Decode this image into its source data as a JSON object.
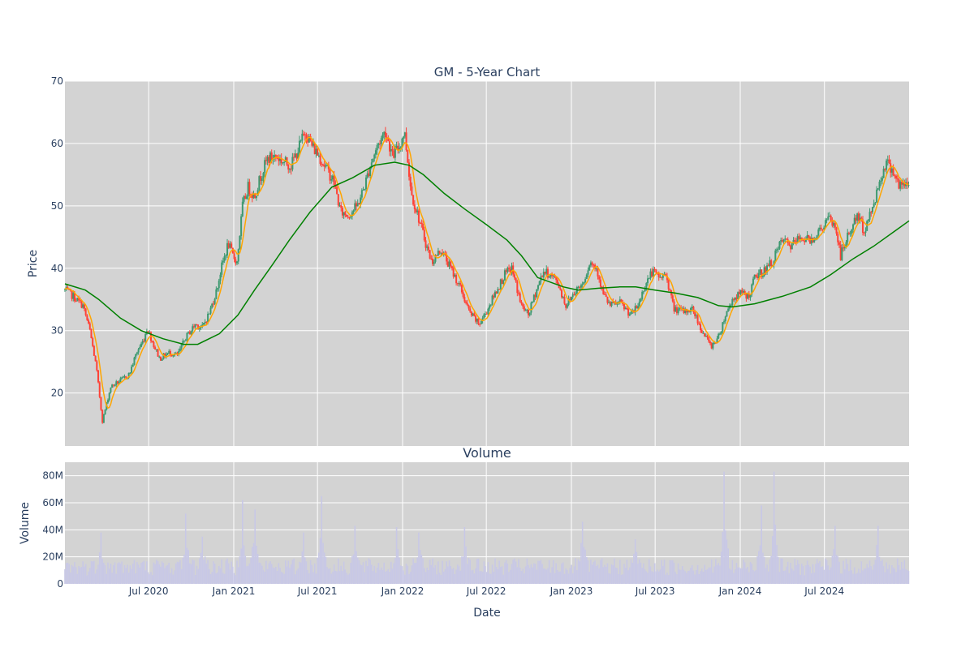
{
  "chart_data": [
    {
      "type": "candlestick",
      "title": "GM - 5-Year Chart",
      "ylabel": "Price",
      "ylim": [
        11.5,
        70
      ],
      "yticks": [
        20,
        30,
        40,
        50,
        60,
        70
      ],
      "grid": true,
      "colors": {
        "up": "#3d9970",
        "down": "#ff4136",
        "ma_short": "#ffa500",
        "ma_long": "#008000",
        "background": "#d3d3d3",
        "grid": "#ffffff"
      },
      "series": [
        {
          "kind": "ohlc",
          "x_start": "2020-01-02",
          "x_end": "2024-12-31"
        },
        {
          "kind": "ma_short"
        },
        {
          "kind": "ma_long"
        }
      ],
      "close_path": [
        [
          "2020-01-02",
          36.5
        ],
        [
          "2020-01-20",
          35.5
        ],
        [
          "2020-02-10",
          34.0
        ],
        [
          "2020-02-25",
          30.0
        ],
        [
          "2020-03-10",
          24.0
        ],
        [
          "2020-03-23",
          15.5
        ],
        [
          "2020-04-10",
          21.0
        ],
        [
          "2020-05-01",
          22.0
        ],
        [
          "2020-05-20",
          23.0
        ],
        [
          "2020-06-05",
          26.5
        ],
        [
          "2020-06-20",
          28.5
        ],
        [
          "2020-06-28",
          30.5
        ],
        [
          "2020-07-10",
          28.0
        ],
        [
          "2020-07-25",
          25.5
        ],
        [
          "2020-08-15",
          26.5
        ],
        [
          "2020-09-01",
          26.0
        ],
        [
          "2020-09-20",
          29.0
        ],
        [
          "2020-10-10",
          31.0
        ],
        [
          "2020-10-25",
          30.5
        ],
        [
          "2020-11-10",
          33.0
        ],
        [
          "2020-11-25",
          36.5
        ],
        [
          "2020-12-05",
          40.0
        ],
        [
          "2020-12-20",
          44.0
        ],
        [
          "2020-12-30",
          42.0
        ],
        [
          "2021-01-08",
          41.0
        ],
        [
          "2021-01-20",
          50.0
        ],
        [
          "2021-02-01",
          53.0
        ],
        [
          "2021-02-15",
          51.5
        ],
        [
          "2021-03-01",
          55.0
        ],
        [
          "2021-03-15",
          57.5
        ],
        [
          "2021-04-01",
          58.0
        ],
        [
          "2021-04-20",
          57.0
        ],
        [
          "2021-05-05",
          56.5
        ],
        [
          "2021-05-20",
          59.0
        ],
        [
          "2021-06-05",
          62.0
        ],
        [
          "2021-06-20",
          59.5
        ],
        [
          "2021-07-05",
          58.0
        ],
        [
          "2021-07-20",
          56.0
        ],
        [
          "2021-08-05",
          54.0
        ],
        [
          "2021-08-20",
          49.0
        ],
        [
          "2021-09-05",
          48.5
        ],
        [
          "2021-09-25",
          50.0
        ],
        [
          "2021-10-10",
          53.0
        ],
        [
          "2021-10-25",
          57.0
        ],
        [
          "2021-11-10",
          60.0
        ],
        [
          "2021-11-25",
          62.0
        ],
        [
          "2021-12-10",
          58.0
        ],
        [
          "2021-12-25",
          59.5
        ],
        [
          "2022-01-05",
          62.0
        ],
        [
          "2022-01-20",
          52.0
        ],
        [
          "2022-02-05",
          48.0
        ],
        [
          "2022-02-20",
          44.0
        ],
        [
          "2022-03-05",
          41.0
        ],
        [
          "2022-03-25",
          43.0
        ],
        [
          "2022-04-15",
          40.0
        ],
        [
          "2022-05-05",
          37.0
        ],
        [
          "2022-05-25",
          33.0
        ],
        [
          "2022-06-15",
          31.0
        ],
        [
          "2022-07-01",
          33.0
        ],
        [
          "2022-07-20",
          36.0
        ],
        [
          "2022-08-10",
          39.0
        ],
        [
          "2022-08-25",
          40.0
        ],
        [
          "2022-09-15",
          34.0
        ],
        [
          "2022-09-30",
          32.5
        ],
        [
          "2022-10-15",
          36.0
        ],
        [
          "2022-11-01",
          39.5
        ],
        [
          "2022-11-15",
          39.0
        ],
        [
          "2022-12-01",
          38.0
        ],
        [
          "2022-12-20",
          34.0
        ],
        [
          "2023-01-10",
          36.5
        ],
        [
          "2023-01-25",
          37.5
        ],
        [
          "2023-02-10",
          41.0
        ],
        [
          "2023-02-25",
          40.0
        ],
        [
          "2023-03-10",
          36.0
        ],
        [
          "2023-03-25",
          34.0
        ],
        [
          "2023-04-15",
          34.5
        ],
        [
          "2023-05-10",
          32.5
        ],
        [
          "2023-05-25",
          34.0
        ],
        [
          "2023-06-10",
          37.5
        ],
        [
          "2023-06-25",
          39.5
        ],
        [
          "2023-07-10",
          38.5
        ],
        [
          "2023-07-25",
          39.0
        ],
        [
          "2023-08-10",
          33.5
        ],
        [
          "2023-09-01",
          33.0
        ],
        [
          "2023-09-20",
          33.5
        ],
        [
          "2023-10-10",
          30.0
        ],
        [
          "2023-10-30",
          27.5
        ],
        [
          "2023-11-15",
          29.0
        ],
        [
          "2023-11-30",
          32.5
        ],
        [
          "2023-12-15",
          35.0
        ],
        [
          "2024-01-02",
          36.0
        ],
        [
          "2024-01-20",
          35.5
        ],
        [
          "2024-02-01",
          38.5
        ],
        [
          "2024-02-20",
          39.5
        ],
        [
          "2024-03-10",
          41.0
        ],
        [
          "2024-04-01",
          44.5
        ],
        [
          "2024-04-20",
          43.5
        ],
        [
          "2024-05-10",
          45.0
        ],
        [
          "2024-06-01",
          44.5
        ],
        [
          "2024-06-20",
          46.0
        ],
        [
          "2024-07-10",
          48.0
        ],
        [
          "2024-07-25",
          46.5
        ],
        [
          "2024-08-05",
          42.0
        ],
        [
          "2024-08-20",
          45.0
        ],
        [
          "2024-09-10",
          48.5
        ],
        [
          "2024-09-25",
          46.0
        ],
        [
          "2024-10-10",
          49.0
        ],
        [
          "2024-10-25",
          53.0
        ],
        [
          "2024-11-10",
          57.0
        ],
        [
          "2024-11-25",
          56.0
        ],
        [
          "2024-12-10",
          53.0
        ],
        [
          "2024-12-31",
          53.5
        ]
      ],
      "ma_long_path": [
        [
          "2020-01-02",
          37.5
        ],
        [
          "2020-02-15",
          36.5
        ],
        [
          "2020-03-15",
          35.0
        ],
        [
          "2020-05-01",
          32.0
        ],
        [
          "2020-06-15",
          30.0
        ],
        [
          "2020-08-01",
          28.7
        ],
        [
          "2020-09-15",
          27.8
        ],
        [
          "2020-10-15",
          27.8
        ],
        [
          "2020-12-01",
          29.5
        ],
        [
          "2021-01-10",
          32.5
        ],
        [
          "2021-02-15",
          36.5
        ],
        [
          "2021-03-25",
          40.5
        ],
        [
          "2021-05-01",
          44.5
        ],
        [
          "2021-06-15",
          49.0
        ],
        [
          "2021-08-01",
          53.0
        ],
        [
          "2021-09-15",
          54.5
        ],
        [
          "2021-11-01",
          56.5
        ],
        [
          "2021-12-15",
          57.0
        ],
        [
          "2022-01-15",
          56.5
        ],
        [
          "2022-02-15",
          55.0
        ],
        [
          "2022-04-01",
          52.0
        ],
        [
          "2022-05-15",
          49.5
        ],
        [
          "2022-07-01",
          47.0
        ],
        [
          "2022-08-15",
          44.5
        ],
        [
          "2022-09-15",
          42.0
        ],
        [
          "2022-10-20",
          38.5
        ],
        [
          "2022-12-15",
          37.0
        ],
        [
          "2023-01-15",
          36.5
        ],
        [
          "2023-03-01",
          36.8
        ],
        [
          "2023-04-15",
          37.0
        ],
        [
          "2023-05-20",
          37.0
        ],
        [
          "2023-07-01",
          36.5
        ],
        [
          "2023-08-15",
          36.0
        ],
        [
          "2023-10-01",
          35.3
        ],
        [
          "2023-11-15",
          34.0
        ],
        [
          "2023-12-15",
          33.8
        ],
        [
          "2024-02-01",
          34.3
        ],
        [
          "2024-04-01",
          35.5
        ],
        [
          "2024-06-01",
          37.0
        ],
        [
          "2024-07-15",
          39.0
        ],
        [
          "2024-09-01",
          41.5
        ],
        [
          "2024-10-15",
          43.5
        ],
        [
          "2024-12-01",
          46.0
        ],
        [
          "2024-12-31",
          47.6
        ]
      ]
    },
    {
      "type": "bar",
      "title": "Volume",
      "ylabel": "Volume",
      "xlabel": "Date",
      "ylim": [
        0,
        90000000
      ],
      "yticks": [
        0,
        20000000,
        40000000,
        60000000,
        80000000
      ],
      "grid": true,
      "colors": {
        "bar": "#c8c8e6",
        "background": "#d3d3d3"
      },
      "x_start": "2020-01-02",
      "x_end": "2024-12-31",
      "baseline_millions": 14,
      "spikes_millions": [
        [
          "2020-03-20",
          38
        ],
        [
          "2020-09-20",
          52
        ],
        [
          "2020-10-25",
          35
        ],
        [
          "2021-01-20",
          62
        ],
        [
          "2021-02-15",
          55
        ],
        [
          "2021-06-01",
          38
        ],
        [
          "2021-07-10",
          65
        ],
        [
          "2021-09-20",
          43
        ],
        [
          "2021-12-20",
          42
        ],
        [
          "2022-02-05",
          38
        ],
        [
          "2022-05-15",
          42
        ],
        [
          "2023-01-25",
          46
        ],
        [
          "2023-05-20",
          33
        ],
        [
          "2023-11-28",
          83
        ],
        [
          "2024-02-15",
          58
        ],
        [
          "2024-03-15",
          83
        ],
        [
          "2024-07-25",
          43
        ],
        [
          "2024-10-25",
          43
        ]
      ]
    }
  ],
  "text": {
    "price_title": "GM - 5-Year Chart",
    "price_ylabel": "Price",
    "volume_title": "Volume",
    "volume_ylabel": "Volume",
    "xlabel": "Date",
    "price_ticks": [
      "20",
      "30",
      "40",
      "50",
      "60",
      "70"
    ],
    "volume_ticks": [
      "0",
      "20M",
      "40M",
      "60M",
      "80M"
    ],
    "date_ticks": [
      {
        "label": "Jul 2020",
        "date": "2020-07-01"
      },
      {
        "label": "Jan 2021",
        "date": "2021-01-01"
      },
      {
        "label": "Jul 2021",
        "date": "2021-07-01"
      },
      {
        "label": "Jan 2022",
        "date": "2022-01-01"
      },
      {
        "label": "Jul 2022",
        "date": "2022-07-01"
      },
      {
        "label": "Jan 2023",
        "date": "2023-01-01"
      },
      {
        "label": "Jul 2023",
        "date": "2023-07-01"
      },
      {
        "label": "Jan 2024",
        "date": "2024-01-01"
      },
      {
        "label": "Jul 2024",
        "date": "2024-07-01"
      }
    ]
  }
}
